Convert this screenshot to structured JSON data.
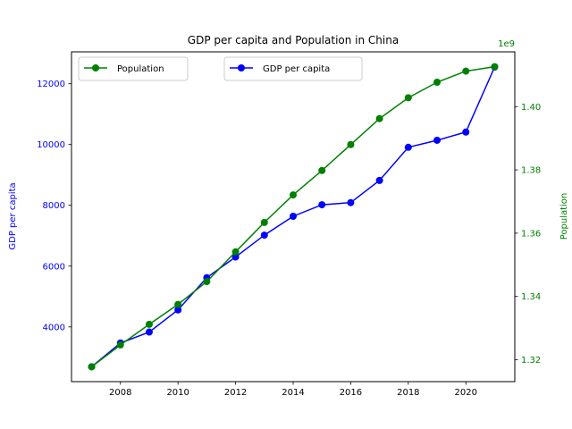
{
  "chart_data": {
    "type": "line",
    "title": "GDP per capita and Population in China",
    "x": [
      2007,
      2008,
      2009,
      2010,
      2011,
      2012,
      2013,
      2014,
      2015,
      2016,
      2017,
      2018,
      2019,
      2020,
      2021
    ],
    "xticks": [
      "2008",
      "2010",
      "2012",
      "2014",
      "2016",
      "2018",
      "2020"
    ],
    "xlim": [
      2006.3,
      2021.7
    ],
    "series": [
      {
        "name": "GDP per capita",
        "axis": "left",
        "color": "#0000ff",
        "values": [
          2690,
          3470,
          3830,
          4560,
          5620,
          6300,
          7020,
          7640,
          8020,
          8090,
          8820,
          9910,
          10140,
          10410,
          12550
        ]
      },
      {
        "name": "Population",
        "axis": "right",
        "color": "#008000",
        "values": [
          1317800000.0,
          1324700000.0,
          1331200000.0,
          1337500000.0,
          1344700000.0,
          1354100000.0,
          1363400000.0,
          1372100000.0,
          1379800000.0,
          1388000000.0,
          1396200000.0,
          1402800000.0,
          1407700000.0,
          1411200000.0,
          1412600000.0
        ]
      }
    ],
    "y_left": {
      "label": "GDP per capita",
      "ticks": [
        "4000",
        "6000",
        "8000",
        "10000",
        "12000"
      ],
      "tick_values": [
        4000,
        6000,
        8000,
        10000,
        12000
      ],
      "lim": [
        2200,
        13050
      ],
      "color": "#0000ff"
    },
    "y_right": {
      "label": "Population",
      "offset_text": "1e9",
      "ticks": [
        "1.32",
        "1.34",
        "1.36",
        "1.38",
        "1.40"
      ],
      "tick_values": [
        1.32,
        1.34,
        1.36,
        1.38,
        1.4
      ],
      "lim": [
        1.3131,
        1.4173
      ],
      "color": "#008000"
    },
    "legend": [
      {
        "label": "Population",
        "placement": "upper-left",
        "color": "#008000"
      },
      {
        "label": "GDP per capita",
        "placement": "upper-center",
        "color": "#0000ff"
      }
    ],
    "grid": false
  }
}
